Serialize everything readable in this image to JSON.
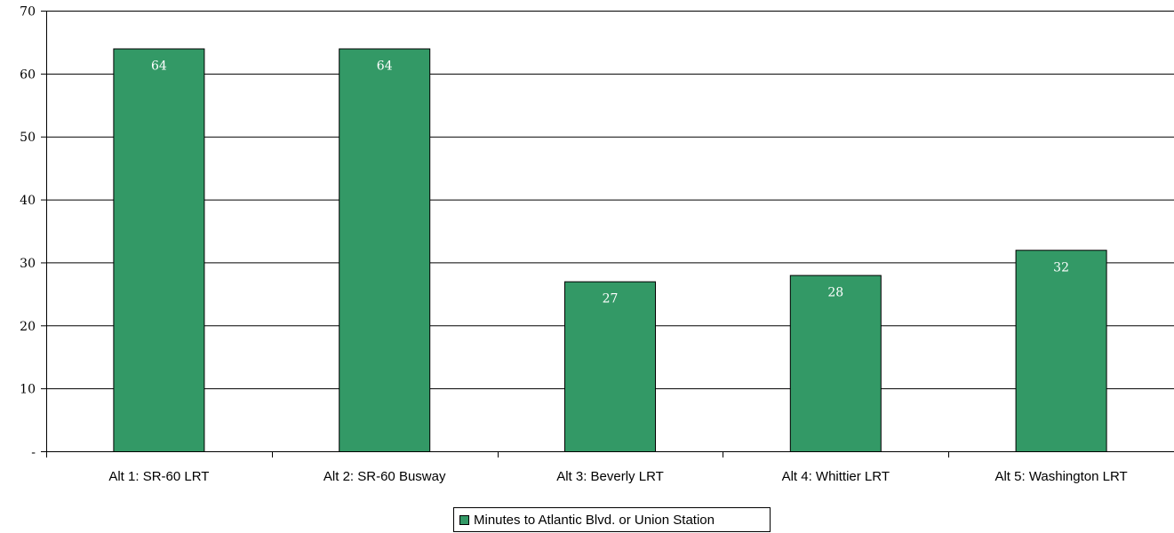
{
  "chart_data": {
    "type": "bar",
    "categories": [
      "Alt 1: SR-60 LRT",
      "Alt 2: SR-60 Busway",
      "Alt 3: Beverly LRT",
      "Alt 4: Whittier LRT",
      "Alt 5: Washington LRT"
    ],
    "series": [
      {
        "name": "Minutes to Atlantic Blvd. or Union Station",
        "values": [
          64,
          64,
          27,
          28,
          32
        ]
      }
    ],
    "data_labels": [
      "64",
      "64",
      "27",
      "28",
      "32"
    ],
    "ylim": [
      0,
      70
    ],
    "y_ticks": [
      0,
      10,
      20,
      30,
      40,
      50,
      60,
      70
    ],
    "y_tick_labels": [
      "-",
      "10",
      "20",
      "30",
      "40",
      "50",
      "60",
      "70"
    ],
    "grid": true,
    "legend_position": "bottom-center",
    "colors": {
      "bar": "#339966",
      "bar_stroke": "#000000",
      "grid": "#000000"
    }
  }
}
